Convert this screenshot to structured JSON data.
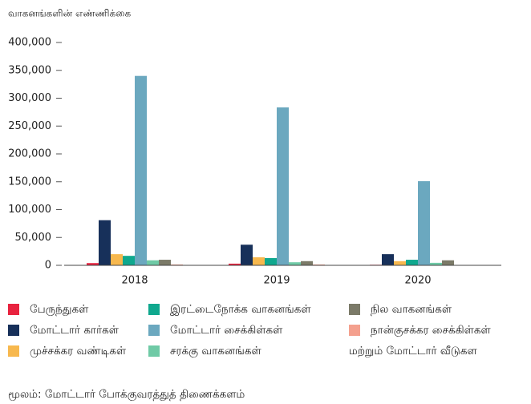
{
  "chart_data": {
    "type": "bar",
    "y_label": "வாகனங்களின் எண்ணிக்கை",
    "source": "மூலம்: மோட்டார் போக்குவரத்துத் திணைக்களம்",
    "categories": [
      "2018",
      "2019",
      "2020"
    ],
    "ylim": [
      0,
      400000
    ],
    "yticks": [
      0,
      {
        "value": 50000,
        "label": "50,000"
      },
      {
        "value": 100000,
        "label": "100,000"
      },
      {
        "value": 150000,
        "label": "150,000"
      },
      {
        "value": 200000,
        "label": "200,000"
      },
      {
        "value": 250000,
        "label": "250,000"
      },
      {
        "value": 300000,
        "label": "300,000"
      },
      {
        "value": 350000,
        "label": "350,000"
      },
      {
        "value": 400000,
        "label": "400,000"
      }
    ],
    "series": [
      {
        "name": "பேருந்துகள்",
        "color": "#e8233f",
        "values": [
          4000,
          3000,
          1000
        ]
      },
      {
        "name": "மோட்டார் கார்கள்",
        "color": "#17305a",
        "values": [
          81000,
          37000,
          20000
        ]
      },
      {
        "name": "முச்சக்கர வண்டிகள்",
        "color": "#f7b84e",
        "values": [
          20000,
          14500,
          7500
        ]
      },
      {
        "name": "இரட்டைநோக்க வாகனங்கள்",
        "color": "#0fa88e",
        "values": [
          17000,
          13000,
          10000
        ]
      },
      {
        "name": "மோட்டார் சைக்கிள்கள்",
        "color": "#6ba8bf",
        "values": [
          340000,
          283500,
          151000
        ]
      },
      {
        "name": "சரக்கு வாகனங்கள்",
        "color": "#6fcaa6",
        "values": [
          9000,
          5500,
          4500
        ]
      },
      {
        "name": "நில வாகனங்கள்",
        "color": "#7b7a68",
        "values": [
          10000,
          7500,
          9000
        ]
      },
      {
        "name": "நான்குசக்கர சைக்கிள்கள் மற்றும் மோட்டார் வீடுகள",
        "color": "#f4a08e",
        "values": [
          1500,
          1500,
          500
        ]
      }
    ]
  }
}
